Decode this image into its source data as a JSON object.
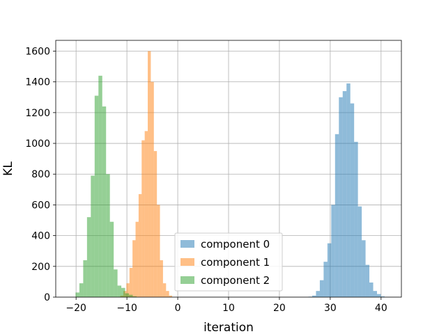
{
  "chart_data": {
    "type": "bar",
    "title": "",
    "xlabel": "iteration",
    "ylabel": "KL",
    "xlim": [
      -24,
      44
    ],
    "ylim": [
      0,
      1670
    ],
    "x_ticks": [
      -20,
      -10,
      0,
      10,
      20,
      30,
      40
    ],
    "y_ticks": [
      0,
      200,
      400,
      600,
      800,
      1000,
      1200,
      1400,
      1600
    ],
    "grid": true,
    "legend_position": "lower-center",
    "series": [
      {
        "name": "component 0",
        "color": "#1f77b4",
        "bin_width": 0.75,
        "bins": [
          [
            25.7,
            3
          ],
          [
            26.45,
            10
          ],
          [
            27.2,
            40
          ],
          [
            27.95,
            110
          ],
          [
            28.7,
            230
          ],
          [
            29.45,
            350
          ],
          [
            30.2,
            600
          ],
          [
            30.95,
            1060
          ],
          [
            31.7,
            1300
          ],
          [
            32.45,
            1340
          ],
          [
            33.2,
            1390
          ],
          [
            33.95,
            1260
          ],
          [
            34.7,
            1010
          ],
          [
            35.45,
            590
          ],
          [
            36.2,
            370
          ],
          [
            36.95,
            210
          ],
          [
            37.7,
            95
          ],
          [
            38.45,
            40
          ],
          [
            39.2,
            20
          ],
          [
            39.95,
            5
          ]
        ]
      },
      {
        "name": "component 1",
        "color": "#ff7f0e",
        "bin_width": 0.6,
        "bins": [
          [
            -11.3,
            10
          ],
          [
            -10.7,
            40
          ],
          [
            -10.1,
            90
          ],
          [
            -9.5,
            190
          ],
          [
            -8.9,
            370
          ],
          [
            -8.3,
            490
          ],
          [
            -7.7,
            670
          ],
          [
            -7.1,
            1020
          ],
          [
            -6.5,
            1080
          ],
          [
            -5.9,
            1600
          ],
          [
            -5.3,
            1400
          ],
          [
            -4.7,
            950
          ],
          [
            -4.1,
            600
          ],
          [
            -3.5,
            240
          ],
          [
            -2.9,
            90
          ],
          [
            -2.3,
            40
          ],
          [
            -1.7,
            10
          ]
        ]
      },
      {
        "name": "component 2",
        "color": "#2ca02c",
        "bin_width": 0.75,
        "bins": [
          [
            -20.1,
            30
          ],
          [
            -19.35,
            90
          ],
          [
            -18.6,
            240
          ],
          [
            -17.85,
            520
          ],
          [
            -17.1,
            790
          ],
          [
            -16.35,
            1310
          ],
          [
            -15.6,
            1440
          ],
          [
            -14.85,
            1240
          ],
          [
            -14.1,
            800
          ],
          [
            -13.35,
            490
          ],
          [
            -12.6,
            180
          ],
          [
            -11.85,
            75
          ],
          [
            -11.1,
            60
          ],
          [
            -10.35,
            25
          ],
          [
            -9.6,
            15
          ],
          [
            -8.85,
            5
          ]
        ]
      }
    ]
  }
}
